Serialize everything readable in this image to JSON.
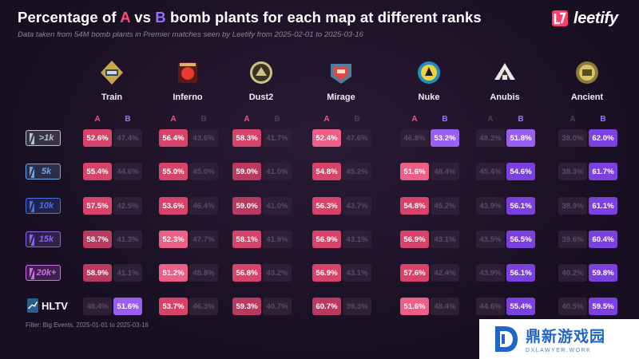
{
  "header": {
    "title_part1": "Percentage of ",
    "title_a": "A",
    "title_part2": " vs ",
    "title_b": "B",
    "title_part3": " bomb plants for each map at different ranks",
    "subtitle": "Data taken from 54M bomb plants in Premier matches seen by Leetify from 2025-02-01 to 2025-03-16",
    "brand": "leetify"
  },
  "footer": {
    "filter": "Filter: Big Events, 2025-01-01 to 2025-03-16"
  },
  "watermark": {
    "name": "鼎新游戏园",
    "url": "DXLAWYER.WORK"
  },
  "colors": {
    "a": "#ff4d7a",
    "b": "#9b6cff",
    "background": "#1c1226"
  },
  "chart_data": {
    "type": "table",
    "title": "Percentage of A vs B bomb plants for each map at different ranks",
    "column_sub_labels": [
      "A",
      "B"
    ],
    "maps": [
      "Train",
      "Inferno",
      "Dust2",
      "Mirage",
      "Nuke",
      "Anubis",
      "Ancient"
    ],
    "ranks": [
      ">1k",
      "5k",
      "10k",
      "15k",
      "20k+",
      "HLTV"
    ],
    "rank_colors": [
      "#b7c2d0",
      "#6fa8e8",
      "#4a6fe0",
      "#8a64e6",
      "#d46cf0",
      "#2a5d8e"
    ],
    "rows": [
      {
        "rank": ">1k",
        "cells": [
          [
            "52.6%",
            "47.4%"
          ],
          [
            "56.4%",
            "43.6%"
          ],
          [
            "58.3%",
            "41.7%"
          ],
          [
            "52.4%",
            "47.6%"
          ],
          [
            "46.8%",
            "53.2%"
          ],
          [
            "48.2%",
            "51.8%"
          ],
          [
            "38.0%",
            "62.0%"
          ]
        ]
      },
      {
        "rank": "5k",
        "cells": [
          [
            "55.4%",
            "44.6%"
          ],
          [
            "55.0%",
            "45.0%"
          ],
          [
            "59.0%",
            "41.0%"
          ],
          [
            "54.8%",
            "45.2%"
          ],
          [
            "51.6%",
            "48.4%"
          ],
          [
            "45.4%",
            "54.6%"
          ],
          [
            "38.3%",
            "61.7%"
          ]
        ]
      },
      {
        "rank": "10k",
        "cells": [
          [
            "57.5%",
            "42.5%"
          ],
          [
            "53.6%",
            "46.4%"
          ],
          [
            "59.0%",
            "41.0%"
          ],
          [
            "56.3%",
            "43.7%"
          ],
          [
            "54.8%",
            "45.2%"
          ],
          [
            "43.9%",
            "56.1%"
          ],
          [
            "38.9%",
            "61.1%"
          ]
        ]
      },
      {
        "rank": "15k",
        "cells": [
          [
            "58.7%",
            "41.3%"
          ],
          [
            "52.3%",
            "47.7%"
          ],
          [
            "58.1%",
            "41.9%"
          ],
          [
            "56.9%",
            "43.1%"
          ],
          [
            "56.9%",
            "43.1%"
          ],
          [
            "43.5%",
            "56.5%"
          ],
          [
            "39.6%",
            "60.4%"
          ]
        ]
      },
      {
        "rank": "20k+",
        "cells": [
          [
            "58.9%",
            "41.1%"
          ],
          [
            "51.2%",
            "48.8%"
          ],
          [
            "56.8%",
            "43.2%"
          ],
          [
            "56.9%",
            "43.1%"
          ],
          [
            "57.6%",
            "42.4%"
          ],
          [
            "43.9%",
            "56.1%"
          ],
          [
            "40.2%",
            "59.8%"
          ]
        ]
      },
      {
        "rank": "HLTV",
        "cells": [
          [
            "48.4%",
            "51.6%"
          ],
          [
            "53.7%",
            "46.3%"
          ],
          [
            "59.3%",
            "40.7%"
          ],
          [
            "60.7%",
            "39.3%"
          ],
          [
            "51.6%",
            "48.4%"
          ],
          [
            "44.6%",
            "55.4%"
          ],
          [
            "40.5%",
            "59.5%"
          ]
        ]
      }
    ]
  }
}
